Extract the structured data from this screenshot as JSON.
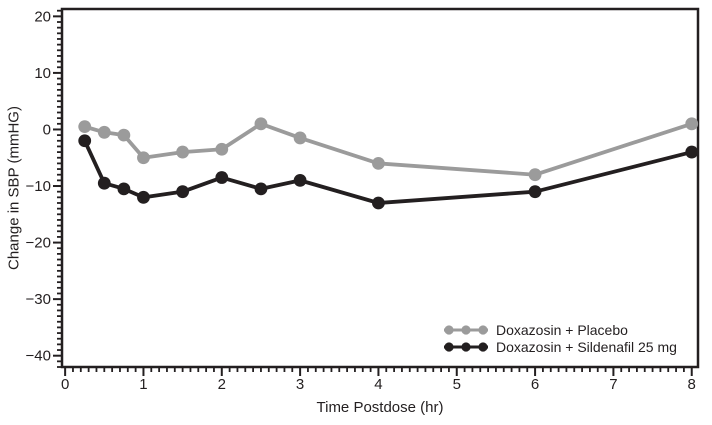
{
  "figure": {
    "x_title": "Time Postdose (hr)",
    "y_title": "Change in SBP (mmHG)"
  },
  "chart_data": {
    "type": "line",
    "title": "",
    "xlabel": "Time Postdose (hr)",
    "ylabel": "Change in SBP (mmHG)",
    "xlim": [
      -0.04,
      8.08
    ],
    "ylim": [
      -42,
      21.3
    ],
    "grid": false,
    "legend_position": "inside-bottom-right",
    "background": "#ffffff",
    "ink_color": "#231f20",
    "x_ticks": {
      "values": [
        0,
        1,
        2,
        3,
        4,
        5,
        6,
        7,
        8
      ],
      "labels": [
        "0",
        "1",
        "2",
        "3",
        "4",
        "5",
        "6",
        "7",
        "8"
      ],
      "minor_step": 0.1
    },
    "y_ticks": {
      "values": [
        20,
        10,
        0,
        -10,
        -20,
        -30,
        -40
      ],
      "labels": [
        "20",
        "10",
        "0",
        "−10",
        "−20",
        "−30",
        "−40"
      ],
      "minor_step": 1
    },
    "x": [
      0.25,
      0.5,
      0.75,
      1,
      1.5,
      2,
      2.5,
      3,
      4,
      6,
      8
    ],
    "series": [
      {
        "name": "Doxazosin + Placebo",
        "color": "#9b9b9b",
        "marker": "circle",
        "values": [
          0.5,
          -0.5,
          -1,
          -5,
          -4,
          -3.5,
          1,
          -1.5,
          -6,
          -8,
          1
        ]
      },
      {
        "name": "Doxazosin + Sildenafil 25 mg",
        "color": "#231f20",
        "marker": "circle",
        "values": [
          -2,
          -9.5,
          -10.5,
          -12,
          -11,
          -8.5,
          -10.5,
          -9,
          -13,
          -11,
          -4
        ]
      }
    ]
  }
}
